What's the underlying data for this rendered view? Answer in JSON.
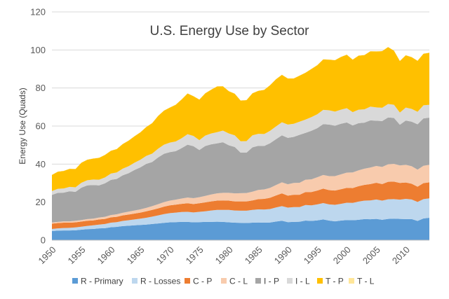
{
  "chart_data": {
    "type": "area",
    "stacked": true,
    "title": "U.S. Energy Use by Sector",
    "xlabel": "",
    "ylabel": "Energy Use (Quads)",
    "xlim": [
      1950,
      2014
    ],
    "ylim": [
      0,
      120
    ],
    "y_ticks": [
      "0",
      "20",
      "40",
      "60",
      "80",
      "100",
      "120"
    ],
    "x_ticks": [
      "1950",
      "1955",
      "1960",
      "1965",
      "1970",
      "1975",
      "1980",
      "1985",
      "1990",
      "1995",
      "2000",
      "2005",
      "2010"
    ],
    "grid": "horizontal",
    "legend": "bottom",
    "x": [
      1950,
      1951,
      1952,
      1953,
      1954,
      1955,
      1956,
      1957,
      1958,
      1959,
      1960,
      1961,
      1962,
      1963,
      1964,
      1965,
      1966,
      1967,
      1968,
      1969,
      1970,
      1971,
      1972,
      1973,
      1974,
      1975,
      1976,
      1977,
      1978,
      1979,
      1980,
      1981,
      1982,
      1983,
      1984,
      1985,
      1986,
      1987,
      1988,
      1989,
      1990,
      1991,
      1992,
      1993,
      1994,
      1995,
      1996,
      1997,
      1998,
      1999,
      2000,
      2001,
      2002,
      2003,
      2004,
      2005,
      2006,
      2007,
      2008,
      2009,
      2010,
      2011,
      2012,
      2013,
      2014
    ],
    "series": [
      {
        "name": "R - Primary",
        "color": "#5b9bd5",
        "values": [
          4.8,
          5.0,
          5.1,
          5.1,
          5.2,
          5.5,
          5.8,
          5.9,
          6.2,
          6.3,
          6.8,
          7.0,
          7.4,
          7.6,
          7.8,
          8.0,
          8.2,
          8.5,
          8.8,
          9.1,
          9.4,
          9.5,
          9.6,
          9.6,
          9.4,
          9.5,
          9.6,
          9.6,
          9.7,
          9.6,
          9.4,
          9.2,
          9.1,
          9.0,
          9.2,
          9.3,
          9.2,
          9.3,
          9.8,
          10.2,
          9.5,
          9.6,
          9.7,
          10.3,
          10.1,
          10.4,
          10.9,
          10.3,
          9.9,
          10.3,
          10.6,
          10.5,
          10.7,
          11.1,
          11.0,
          11.2,
          10.7,
          11.2,
          11.3,
          11.2,
          11.1,
          11.1,
          10.1,
          11.4,
          11.8
        ]
      },
      {
        "name": "R - Losses",
        "color": "#bdd7ee",
        "values": [
          1.1,
          1.2,
          1.3,
          1.4,
          1.5,
          1.6,
          1.7,
          1.9,
          2.0,
          2.2,
          2.4,
          2.5,
          2.7,
          2.9,
          3.1,
          3.3,
          3.6,
          3.9,
          4.2,
          4.6,
          4.8,
          5.0,
          5.2,
          5.3,
          5.2,
          5.4,
          5.6,
          6.0,
          6.2,
          6.3,
          6.5,
          6.4,
          6.4,
          6.5,
          6.7,
          6.9,
          6.9,
          7.1,
          7.4,
          7.7,
          7.6,
          7.8,
          7.7,
          8.2,
          8.2,
          8.4,
          8.6,
          8.5,
          8.7,
          8.8,
          9.1,
          9.1,
          9.6,
          9.7,
          9.9,
          10.2,
          10.1,
          10.3,
          10.3,
          10.1,
          10.6,
          10.3,
          10.0,
          10.2,
          10.2
        ]
      },
      {
        "name": "C - P",
        "color": "#ed7d31",
        "values": [
          2.8,
          2.8,
          2.8,
          2.7,
          2.7,
          2.7,
          2.7,
          2.6,
          2.7,
          2.7,
          2.8,
          2.8,
          2.9,
          3.0,
          3.1,
          3.2,
          3.4,
          3.5,
          3.7,
          3.9,
          4.1,
          4.2,
          4.3,
          4.5,
          4.4,
          4.5,
          4.7,
          4.8,
          4.9,
          5.0,
          4.9,
          4.8,
          4.9,
          4.9,
          5.0,
          5.4,
          5.6,
          5.9,
          6.3,
          6.7,
          6.3,
          6.5,
          6.5,
          6.8,
          7.0,
          7.3,
          7.6,
          7.5,
          7.5,
          7.7,
          7.8,
          7.8,
          8.1,
          8.3,
          8.6,
          8.8,
          8.7,
          9.2,
          9.2,
          8.8,
          8.6,
          8.3,
          8.0,
          8.4,
          8.4
        ]
      },
      {
        "name": "C - L",
        "color": "#f8cbad",
        "values": [
          0.6,
          0.6,
          0.7,
          0.7,
          0.8,
          0.8,
          0.9,
          0.9,
          1.0,
          1.1,
          1.2,
          1.3,
          1.4,
          1.5,
          1.6,
          1.7,
          1.8,
          2.0,
          2.2,
          2.4,
          2.5,
          2.6,
          2.8,
          3.0,
          3.1,
          3.2,
          3.4,
          3.6,
          3.8,
          4.0,
          4.1,
          4.2,
          4.3,
          4.4,
          4.6,
          4.8,
          5.0,
          5.2,
          5.5,
          5.8,
          6.0,
          6.2,
          6.3,
          6.5,
          6.7,
          7.0,
          7.2,
          7.4,
          7.6,
          7.8,
          8.0,
          8.2,
          8.3,
          8.5,
          8.7,
          8.8,
          9.0,
          9.2,
          9.3,
          9.2,
          9.3,
          9.2,
          9.0,
          9.1,
          9.2
        ]
      },
      {
        "name": "I - P",
        "color": "#a5a5a5",
        "values": [
          14.5,
          15.3,
          15.1,
          15.8,
          15.2,
          17.0,
          17.7,
          17.7,
          16.9,
          17.6,
          18.5,
          18.6,
          19.7,
          20.2,
          21.3,
          22.1,
          23.1,
          23.2,
          24.6,
          25.4,
          25.5,
          25.5,
          26.5,
          27.8,
          27.3,
          24.8,
          26.2,
          26.4,
          26.3,
          26.6,
          25.0,
          24.4,
          21.3,
          21.2,
          23.3,
          23.2,
          22.8,
          23.5,
          24.1,
          24.7,
          24.4,
          24.2,
          25.2,
          24.6,
          25.5,
          25.8,
          26.7,
          27.1,
          26.5,
          26.6,
          26.4,
          24.7,
          24.8,
          24.2,
          24.8,
          23.8,
          24.1,
          24.6,
          24.2,
          21.4,
          23.3,
          23.4,
          23.8,
          24.9,
          24.8
        ]
      },
      {
        "name": "I - L",
        "color": "#d9d9d9",
        "values": [
          2.0,
          2.1,
          2.2,
          2.3,
          2.4,
          2.6,
          2.7,
          2.9,
          3.0,
          3.1,
          3.3,
          3.4,
          3.5,
          3.7,
          3.8,
          4.0,
          4.2,
          4.4,
          4.6,
          4.8,
          5.0,
          5.1,
          5.2,
          5.5,
          5.4,
          5.2,
          5.5,
          5.7,
          5.9,
          6.1,
          6.2,
          6.1,
          6.0,
          6.1,
          6.3,
          6.3,
          6.3,
          6.5,
          6.7,
          6.9,
          7.0,
          6.9,
          6.9,
          7.0,
          7.2,
          7.3,
          7.5,
          7.5,
          7.4,
          7.4,
          7.5,
          7.0,
          7.1,
          7.0,
          7.2,
          7.0,
          7.0,
          7.1,
          6.9,
          6.4,
          6.8,
          6.7,
          6.6,
          6.9,
          6.8
        ]
      },
      {
        "name": "T - P",
        "color": "#ffc000",
        "values": [
          8.5,
          9.0,
          9.2,
          9.5,
          9.6,
          10.5,
          10.8,
          11.0,
          11.5,
          11.8,
          12.0,
          12.3,
          12.9,
          13.4,
          13.9,
          14.4,
          15.2,
          16.0,
          17.2,
          17.9,
          18.4,
          19.3,
          20.4,
          21.4,
          20.9,
          21.3,
          22.2,
          23.0,
          24.0,
          23.3,
          22.2,
          21.9,
          21.4,
          21.5,
          22.1,
          22.6,
          23.2,
          24.0,
          24.8,
          24.9,
          24.2,
          23.8,
          24.2,
          24.6,
          25.3,
          25.8,
          26.5,
          26.6,
          27.0,
          27.7,
          28.1,
          27.6,
          28.4,
          28.5,
          29.1,
          29.4,
          29.8,
          29.9,
          28.4,
          27.1,
          27.5,
          27.2,
          26.8,
          27.1,
          27.3
        ]
      },
      {
        "name": "T - L",
        "color": "#ffe699",
        "values": [
          0.1,
          0.1,
          0.1,
          0.1,
          0.1,
          0.1,
          0.1,
          0.1,
          0.1,
          0.1,
          0.1,
          0.1,
          0.1,
          0.1,
          0.1,
          0.1,
          0.1,
          0.1,
          0.1,
          0.1,
          0.1,
          0.1,
          0.1,
          0.1,
          0.1,
          0.1,
          0.1,
          0.1,
          0.1,
          0.1,
          0.1,
          0.1,
          0.1,
          0.1,
          0.1,
          0.1,
          0.1,
          0.1,
          0.1,
          0.1,
          0.1,
          0.1,
          0.1,
          0.1,
          0.1,
          0.1,
          0.1,
          0.1,
          0.1,
          0.1,
          0.1,
          0.1,
          0.1,
          0.1,
          0.1,
          0.1,
          0.1,
          0.1,
          0.1,
          0.1,
          0.1,
          0.1,
          0.1,
          0.1,
          0.1
        ]
      }
    ]
  }
}
